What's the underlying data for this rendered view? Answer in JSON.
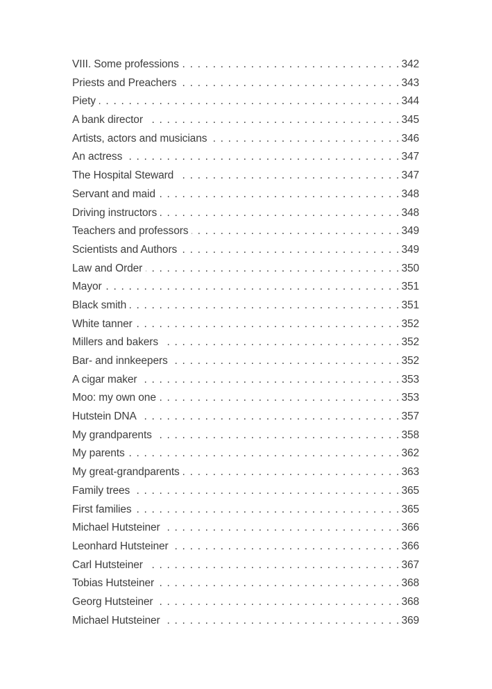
{
  "page": {
    "background_color": "#ffffff",
    "text_color": "#3d3d3d"
  },
  "toc": {
    "entries": [
      {
        "label": "VIII. Some professions",
        "page": "342"
      },
      {
        "label": "Priests and Preachers",
        "page": "343"
      },
      {
        "label": "Piety",
        "page": "344"
      },
      {
        "label": "A bank director",
        "page": "345"
      },
      {
        "label": "Artists, actors and musicians",
        "page": "346"
      },
      {
        "label": "An actress",
        "page": "347"
      },
      {
        "label": "The Hospital Steward",
        "page": "347"
      },
      {
        "label": "Servant and maid",
        "page": "348"
      },
      {
        "label": "Driving instructors",
        "page": "348"
      },
      {
        "label": "Teachers and professors",
        "page": "349"
      },
      {
        "label": "Scientists and Authors",
        "page": "349"
      },
      {
        "label": "Law and Order",
        "page": "350"
      },
      {
        "label": "Mayor",
        "page": "351"
      },
      {
        "label": "Black smith",
        "page": "351"
      },
      {
        "label": "White tanner",
        "page": "352"
      },
      {
        "label": "Millers and bakers",
        "page": "352"
      },
      {
        "label": "Bar- and innkeepers",
        "page": "352"
      },
      {
        "label": "A cigar maker",
        "page": "353"
      },
      {
        "label": "Moo: my own one",
        "page": "353"
      },
      {
        "label": "Hutstein DNA",
        "page": "357"
      },
      {
        "label": "My grandparents",
        "page": "358"
      },
      {
        "label": "My parents",
        "page": "362"
      },
      {
        "label": "My great-grandparents",
        "page": "363"
      },
      {
        "label": "Family trees",
        "page": "365"
      },
      {
        "label": "First families",
        "page": "365"
      },
      {
        "label": "Michael Hutsteiner",
        "page": "366"
      },
      {
        "label": "Leonhard Hutsteiner",
        "page": "366"
      },
      {
        "label": "Carl Hutsteiner",
        "page": "367"
      },
      {
        "label": "Tobias Hutsteiner",
        "page": "368"
      },
      {
        "label": "Georg Hutsteiner",
        "page": "368"
      },
      {
        "label": "Michael Hutsteiner",
        "page": "369"
      }
    ]
  }
}
